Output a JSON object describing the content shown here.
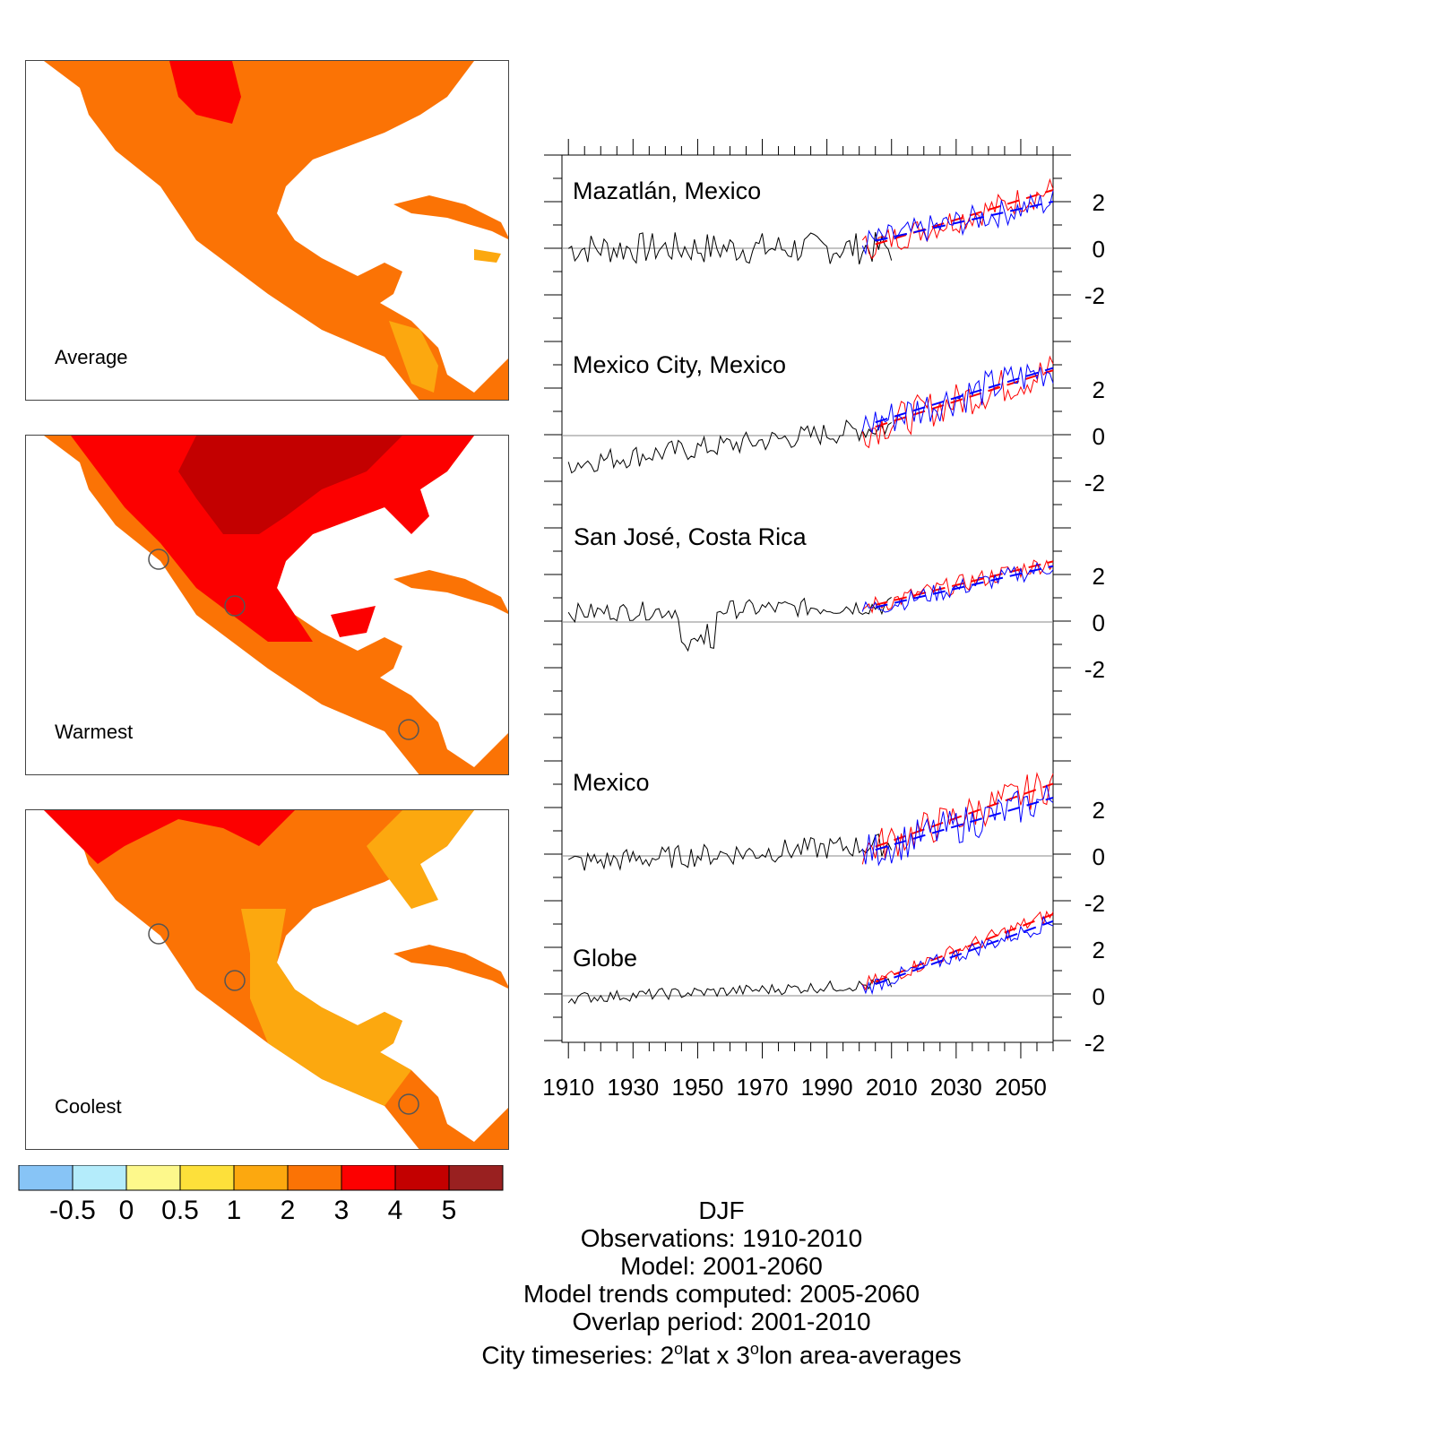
{
  "maps": [
    {
      "id": "average",
      "label": "Average"
    },
    {
      "id": "warmest",
      "label": "Warmest"
    },
    {
      "id": "coolest",
      "label": "Coolest"
    }
  ],
  "colorbar": {
    "colors": [
      "#87c4f6",
      "#b4ecfb",
      "#fdf88b",
      "#fde03a",
      "#fca80f",
      "#fb7305",
      "#fc0000",
      "#c30000",
      "#992020"
    ],
    "tick_labels": [
      "-0.5",
      "0",
      "0.5",
      "1",
      "2",
      "3",
      "4",
      "5"
    ]
  },
  "footer": {
    "season": "DJF",
    "observations": "Observations: 1910-2010",
    "model": "Model: 2001-2060",
    "trends": "Model trends computed: 2005-2060",
    "overlap": "Overlap period: 2001-2010",
    "city_prefix": "City timeseries: 2",
    "city_deg1": "o",
    "city_mid": "lat x 3",
    "city_deg2": "o",
    "city_suffix": "lon area-averages"
  },
  "chart_data": {
    "type": "line",
    "xlim": [
      1908,
      2060
    ],
    "x_tick_labels": [
      "1910",
      "1930",
      "1950",
      "1970",
      "1990",
      "2010",
      "2030",
      "2050"
    ],
    "x_ticks": [
      1910,
      1930,
      1950,
      1970,
      1990,
      2010,
      2030,
      2050
    ],
    "series_colors": {
      "observations": "#000000",
      "model_run_1": "#ff0000",
      "model_run_2": "#0000ff"
    },
    "panels": [
      {
        "title": "Mazatlán, Mexico",
        "y_tick_labels": [
          "2",
          "0",
          "-2"
        ],
        "y_ticks": [
          2,
          0,
          -2
        ],
        "obs_mean": 0.0,
        "obs_amp": 0.7,
        "obs_trend_start": 0.0,
        "obs_trend_end": 0.0,
        "model_trend_red": [
          0.0,
          2.5
        ],
        "model_trend_blue": [
          0.2,
          2.0
        ],
        "model_amp": 0.6
      },
      {
        "title": "Mexico City, Mexico",
        "y_tick_labels": [
          "2",
          "0",
          "-2"
        ],
        "y_ticks": [
          2,
          0,
          -2
        ],
        "obs_mean": -1.2,
        "obs_amp": 0.5,
        "obs_trend_start": -1.2,
        "obs_trend_end": 0.4,
        "model_trend_red": [
          0.2,
          2.8
        ],
        "model_trend_blue": [
          0.4,
          2.9
        ],
        "model_amp": 0.8
      },
      {
        "title": "San José, Costa Rica",
        "y_tick_labels": [
          "2",
          "0",
          "-2"
        ],
        "y_ticks": [
          2,
          0,
          -2
        ],
        "obs_mean": 0.3,
        "obs_amp": 0.4,
        "obs_trend_start": 0.4,
        "obs_trend_end": 0.7,
        "model_trend_red": [
          0.6,
          2.6
        ],
        "model_trend_blue": [
          0.5,
          2.4
        ],
        "model_amp": 0.4
      },
      {
        "title": "Mexico",
        "y_tick_labels": [
          "2",
          "0",
          "-2"
        ],
        "y_ticks": [
          2,
          0,
          -2
        ],
        "obs_mean": -0.3,
        "obs_amp": 0.5,
        "obs_trend_start": -0.3,
        "obs_trend_end": 0.5,
        "model_trend_red": [
          0.2,
          3.1
        ],
        "model_trend_blue": [
          0.1,
          2.5
        ],
        "model_amp": 0.8
      },
      {
        "title": "Globe",
        "y_tick_labels": [
          "2",
          "0",
          "-2"
        ],
        "y_ticks": [
          2,
          0,
          -2
        ],
        "obs_mean": -0.1,
        "obs_amp": 0.25,
        "obs_trend_start": -0.1,
        "obs_trend_end": 0.5,
        "model_trend_red": [
          0.4,
          3.5
        ],
        "model_trend_blue": [
          0.3,
          3.2
        ],
        "model_amp": 0.35
      }
    ]
  }
}
